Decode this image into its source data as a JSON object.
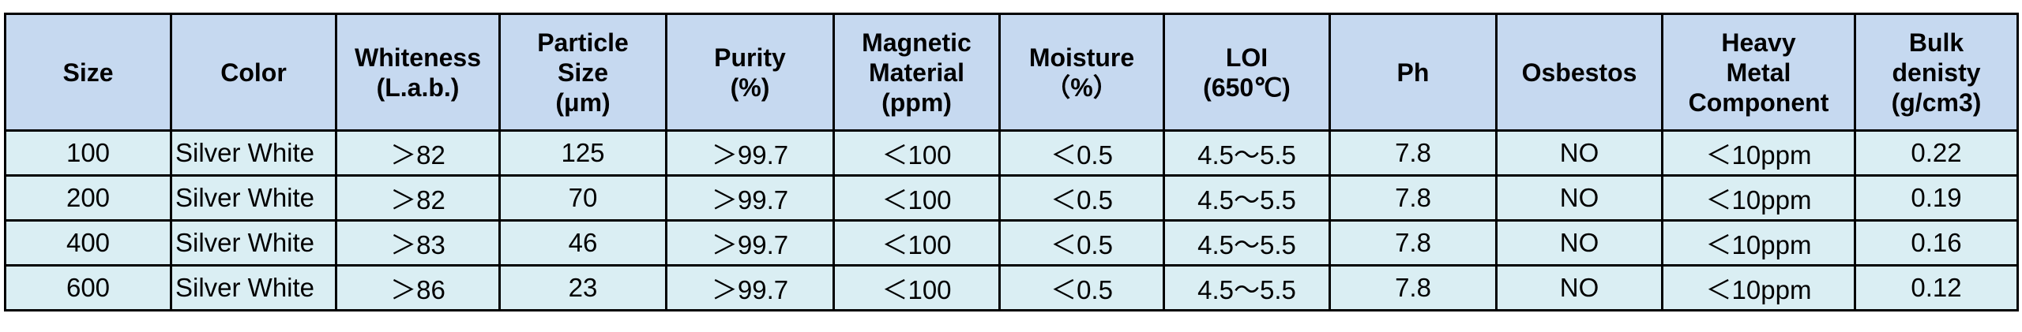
{
  "table": {
    "header": [
      [
        "Size"
      ],
      [
        "Color"
      ],
      [
        "Whiteness",
        "(L.a.b.)"
      ],
      [
        "Particle",
        "Size",
        "(μm)"
      ],
      [
        "Purity",
        "(%)"
      ],
      [
        "Magnetic",
        "Material",
        "(ppm)"
      ],
      [
        "Moisture",
        "（%）"
      ],
      [
        "LOI",
        "(650℃)"
      ],
      [
        "Ph"
      ],
      [
        "Osbestos"
      ],
      [
        "Heavy",
        "Metal",
        "Component"
      ],
      [
        "Bulk",
        "denisty",
        "(g/cm3)"
      ]
    ],
    "rows": [
      [
        "100",
        "Silver White",
        "＞82",
        "125",
        "＞99.7",
        "＜100",
        "＜0.5",
        "4.5～5.5",
        "7.8",
        "NO",
        "＜10ppm",
        "0.22"
      ],
      [
        "200",
        "Silver White",
        "＞82",
        "70",
        "＞99.7",
        "＜100",
        "＜0.5",
        "4.5～5.5",
        "7.8",
        "NO",
        "＜10ppm",
        "0.19"
      ],
      [
        "400",
        "Silver White",
        "＞83",
        "46",
        "＞99.7",
        "＜100",
        "＜0.5",
        "4.5～5.5",
        "7.8",
        "NO",
        "＜10ppm",
        "0.16"
      ],
      [
        "600",
        "Silver White",
        "＞86",
        "23",
        "＞99.7",
        "＜100",
        "＜0.5",
        "4.5～5.5",
        "7.8",
        "NO",
        "＜10ppm",
        "0.12"
      ]
    ]
  }
}
